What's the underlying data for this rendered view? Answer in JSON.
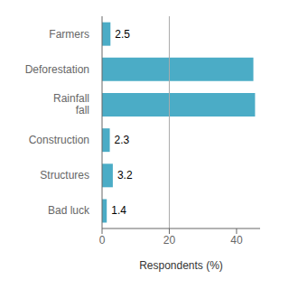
{
  "chart_data": {
    "type": "bar",
    "orientation": "horizontal",
    "categories": [
      "Bad luck",
      "Structures",
      "Construction",
      "Rainfall\nfall",
      "Deforestation",
      "Farmers"
    ],
    "values": [
      1.4,
      3.2,
      2.3,
      45.5,
      45.0,
      2.5
    ],
    "value_labels": [
      "1.4",
      "3.2",
      "2.3",
      null,
      null,
      "2.5"
    ],
    "data_labels": true,
    "color": "#4BACC6",
    "xlabel": "Respondents (%)",
    "xlim": [
      0,
      47
    ],
    "xticks": [
      0,
      20,
      40
    ],
    "grid": false,
    "reference_line": {
      "x": 20,
      "color": "#aaaaaa"
    }
  }
}
